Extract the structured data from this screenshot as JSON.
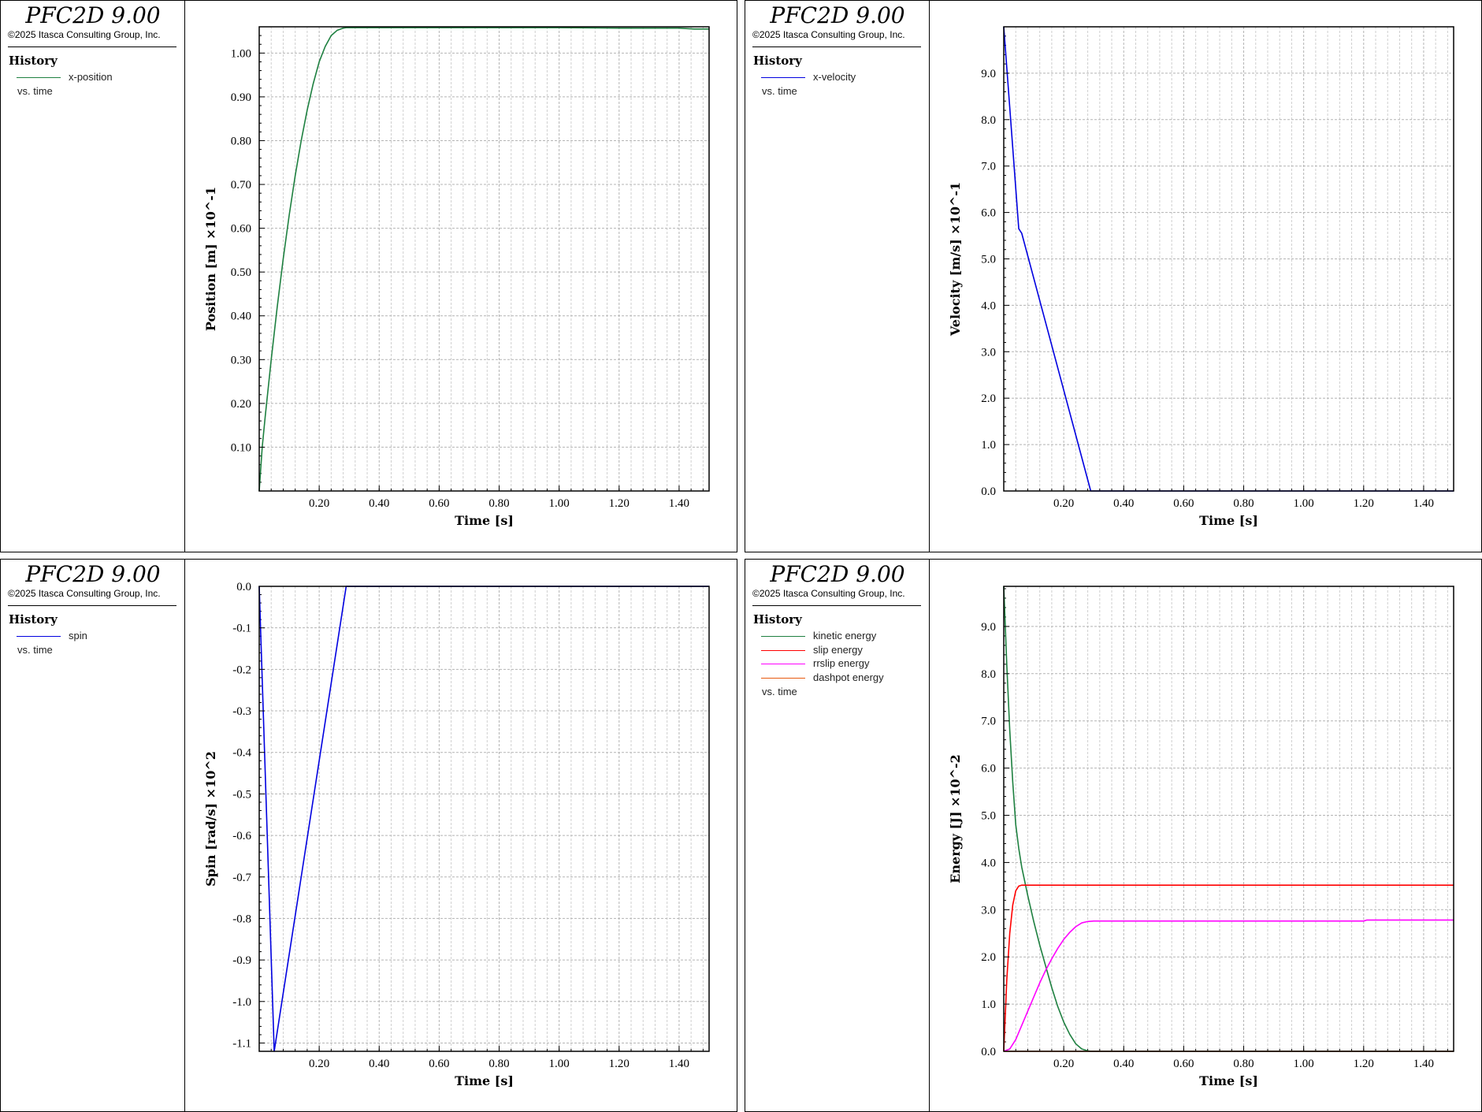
{
  "program_title": "PFC2D 9.00",
  "copyright": "©2025 Itasca Consulting Group, Inc.",
  "history_label": "History",
  "vs_label": "vs. time",
  "chart_data": [
    {
      "type": "line",
      "xlabel": "Time [s]",
      "ylabel": "Position [m]  ×10^-1",
      "xlim": [
        0.0,
        1.5
      ],
      "ylim": [
        0.0,
        1.06
      ],
      "xticks": [
        0.2,
        0.4,
        0.6,
        0.8,
        1.0,
        1.2,
        1.4
      ],
      "xtick_labels": [
        "0.20",
        "0.40",
        "0.60",
        "0.80",
        "1.00",
        "1.20",
        "1.40"
      ],
      "yticks": [
        0.1,
        0.2,
        0.3,
        0.4,
        0.5,
        0.6,
        0.7,
        0.8,
        0.9,
        1.0
      ],
      "ytick_labels": [
        "0.10",
        "0.20",
        "0.30",
        "0.40",
        "0.50",
        "0.60",
        "0.70",
        "0.80",
        "0.90",
        "1.00"
      ],
      "grid": true,
      "series": [
        {
          "name": "x-position",
          "color": "#1e8040",
          "x": [
            0.0,
            0.01,
            0.02,
            0.04,
            0.06,
            0.08,
            0.1,
            0.12,
            0.14,
            0.16,
            0.18,
            0.2,
            0.22,
            0.24,
            0.26,
            0.28,
            0.29,
            0.3,
            0.4,
            0.6,
            0.8,
            1.0,
            1.2,
            1.4,
            1.45,
            1.5
          ],
          "y": [
            0.0,
            0.1,
            0.17,
            0.3,
            0.42,
            0.53,
            0.63,
            0.72,
            0.8,
            0.87,
            0.93,
            0.98,
            1.015,
            1.04,
            1.052,
            1.057,
            1.058,
            1.058,
            1.058,
            1.058,
            1.058,
            1.058,
            1.057,
            1.057,
            1.055,
            1.055
          ]
        }
      ]
    },
    {
      "type": "line",
      "xlabel": "Time [s]",
      "ylabel": "Velocity [m/s]  ×10^-1",
      "xlim": [
        0.0,
        1.5
      ],
      "ylim": [
        0.0,
        10.0
      ],
      "xticks": [
        0.2,
        0.4,
        0.6,
        0.8,
        1.0,
        1.2,
        1.4
      ],
      "xtick_labels": [
        "0.20",
        "0.40",
        "0.60",
        "0.80",
        "1.00",
        "1.20",
        "1.40"
      ],
      "yticks": [
        0.0,
        1.0,
        2.0,
        3.0,
        4.0,
        5.0,
        6.0,
        7.0,
        8.0,
        9.0
      ],
      "ytick_labels": [
        "0.0",
        "1.0",
        "2.0",
        "3.0",
        "4.0",
        "5.0",
        "6.0",
        "7.0",
        "8.0",
        "9.0"
      ],
      "grid": true,
      "series": [
        {
          "name": "x-velocity",
          "color": "#0000e0",
          "x": [
            0.0,
            0.05,
            0.06,
            0.29,
            0.3,
            1.5
          ],
          "y": [
            10.0,
            5.65,
            5.55,
            0.0,
            0.0,
            0.0
          ]
        }
      ]
    },
    {
      "type": "line",
      "xlabel": "Time [s]",
      "ylabel": "Spin [rad/s]  ×10^2",
      "xlim": [
        0.0,
        1.5
      ],
      "ylim": [
        -1.12,
        0.0
      ],
      "xticks": [
        0.2,
        0.4,
        0.6,
        0.8,
        1.0,
        1.2,
        1.4
      ],
      "xtick_labels": [
        "0.20",
        "0.40",
        "0.60",
        "0.80",
        "1.00",
        "1.20",
        "1.40"
      ],
      "yticks": [
        0.0,
        -0.1,
        -0.2,
        -0.3,
        -0.4,
        -0.5,
        -0.6,
        -0.7,
        -0.8,
        -0.9,
        -1.0,
        -1.1
      ],
      "ytick_labels": [
        "0.0",
        "-0.1",
        "-0.2",
        "-0.3",
        "-0.4",
        "-0.5",
        "-0.6",
        "-0.7",
        "-0.8",
        "-0.9",
        "-1.0",
        "-1.1"
      ],
      "grid": true,
      "series": [
        {
          "name": "spin",
          "color": "#0000e0",
          "x": [
            0.0,
            0.05,
            0.29,
            0.3,
            1.5
          ],
          "y": [
            0.0,
            -1.12,
            0.0,
            0.0,
            0.0
          ]
        }
      ]
    },
    {
      "type": "line",
      "xlabel": "Time [s]",
      "ylabel": "Energy [J]  ×10^-2",
      "xlim": [
        0.0,
        1.5
      ],
      "ylim": [
        0.0,
        9.85
      ],
      "xticks": [
        0.2,
        0.4,
        0.6,
        0.8,
        1.0,
        1.2,
        1.4
      ],
      "xtick_labels": [
        "0.20",
        "0.40",
        "0.60",
        "0.80",
        "1.00",
        "1.20",
        "1.40"
      ],
      "yticks": [
        0.0,
        1.0,
        2.0,
        3.0,
        4.0,
        5.0,
        6.0,
        7.0,
        8.0,
        9.0
      ],
      "ytick_labels": [
        "0.0",
        "1.0",
        "2.0",
        "3.0",
        "4.0",
        "5.0",
        "6.0",
        "7.0",
        "8.0",
        "9.0"
      ],
      "grid": true,
      "series": [
        {
          "name": "kinetic energy",
          "color": "#1e8040",
          "x": [
            0.0,
            0.01,
            0.02,
            0.03,
            0.04,
            0.05,
            0.06,
            0.08,
            0.1,
            0.12,
            0.14,
            0.16,
            0.18,
            0.2,
            0.22,
            0.24,
            0.26,
            0.28,
            0.29,
            0.3,
            1.5
          ],
          "y": [
            9.85,
            8.2,
            6.8,
            5.7,
            4.8,
            4.3,
            3.9,
            3.3,
            2.75,
            2.25,
            1.8,
            1.35,
            0.95,
            0.62,
            0.36,
            0.16,
            0.05,
            0.01,
            0.0,
            0.0,
            0.0
          ]
        },
        {
          "name": "slip energy",
          "color": "#ff0000",
          "x": [
            0.0,
            0.01,
            0.02,
            0.03,
            0.04,
            0.05,
            0.06,
            0.07,
            1.5
          ],
          "y": [
            0.0,
            1.5,
            2.5,
            3.1,
            3.4,
            3.5,
            3.52,
            3.52,
            3.52
          ]
        },
        {
          "name": "rrslip energy",
          "color": "#ff00ff",
          "x": [
            0.0,
            0.02,
            0.04,
            0.06,
            0.08,
            0.1,
            0.12,
            0.14,
            0.16,
            0.18,
            0.2,
            0.22,
            0.24,
            0.26,
            0.28,
            0.3,
            0.32,
            1.2,
            1.21,
            1.5
          ],
          "y": [
            0.0,
            0.05,
            0.25,
            0.55,
            0.85,
            1.15,
            1.45,
            1.72,
            1.96,
            2.18,
            2.37,
            2.52,
            2.64,
            2.72,
            2.75,
            2.76,
            2.76,
            2.76,
            2.78,
            2.78
          ]
        },
        {
          "name": "dashpot energy",
          "color": "#e85a10",
          "x": [
            0.0,
            1.5
          ],
          "y": [
            0.0,
            0.0
          ]
        }
      ]
    }
  ]
}
